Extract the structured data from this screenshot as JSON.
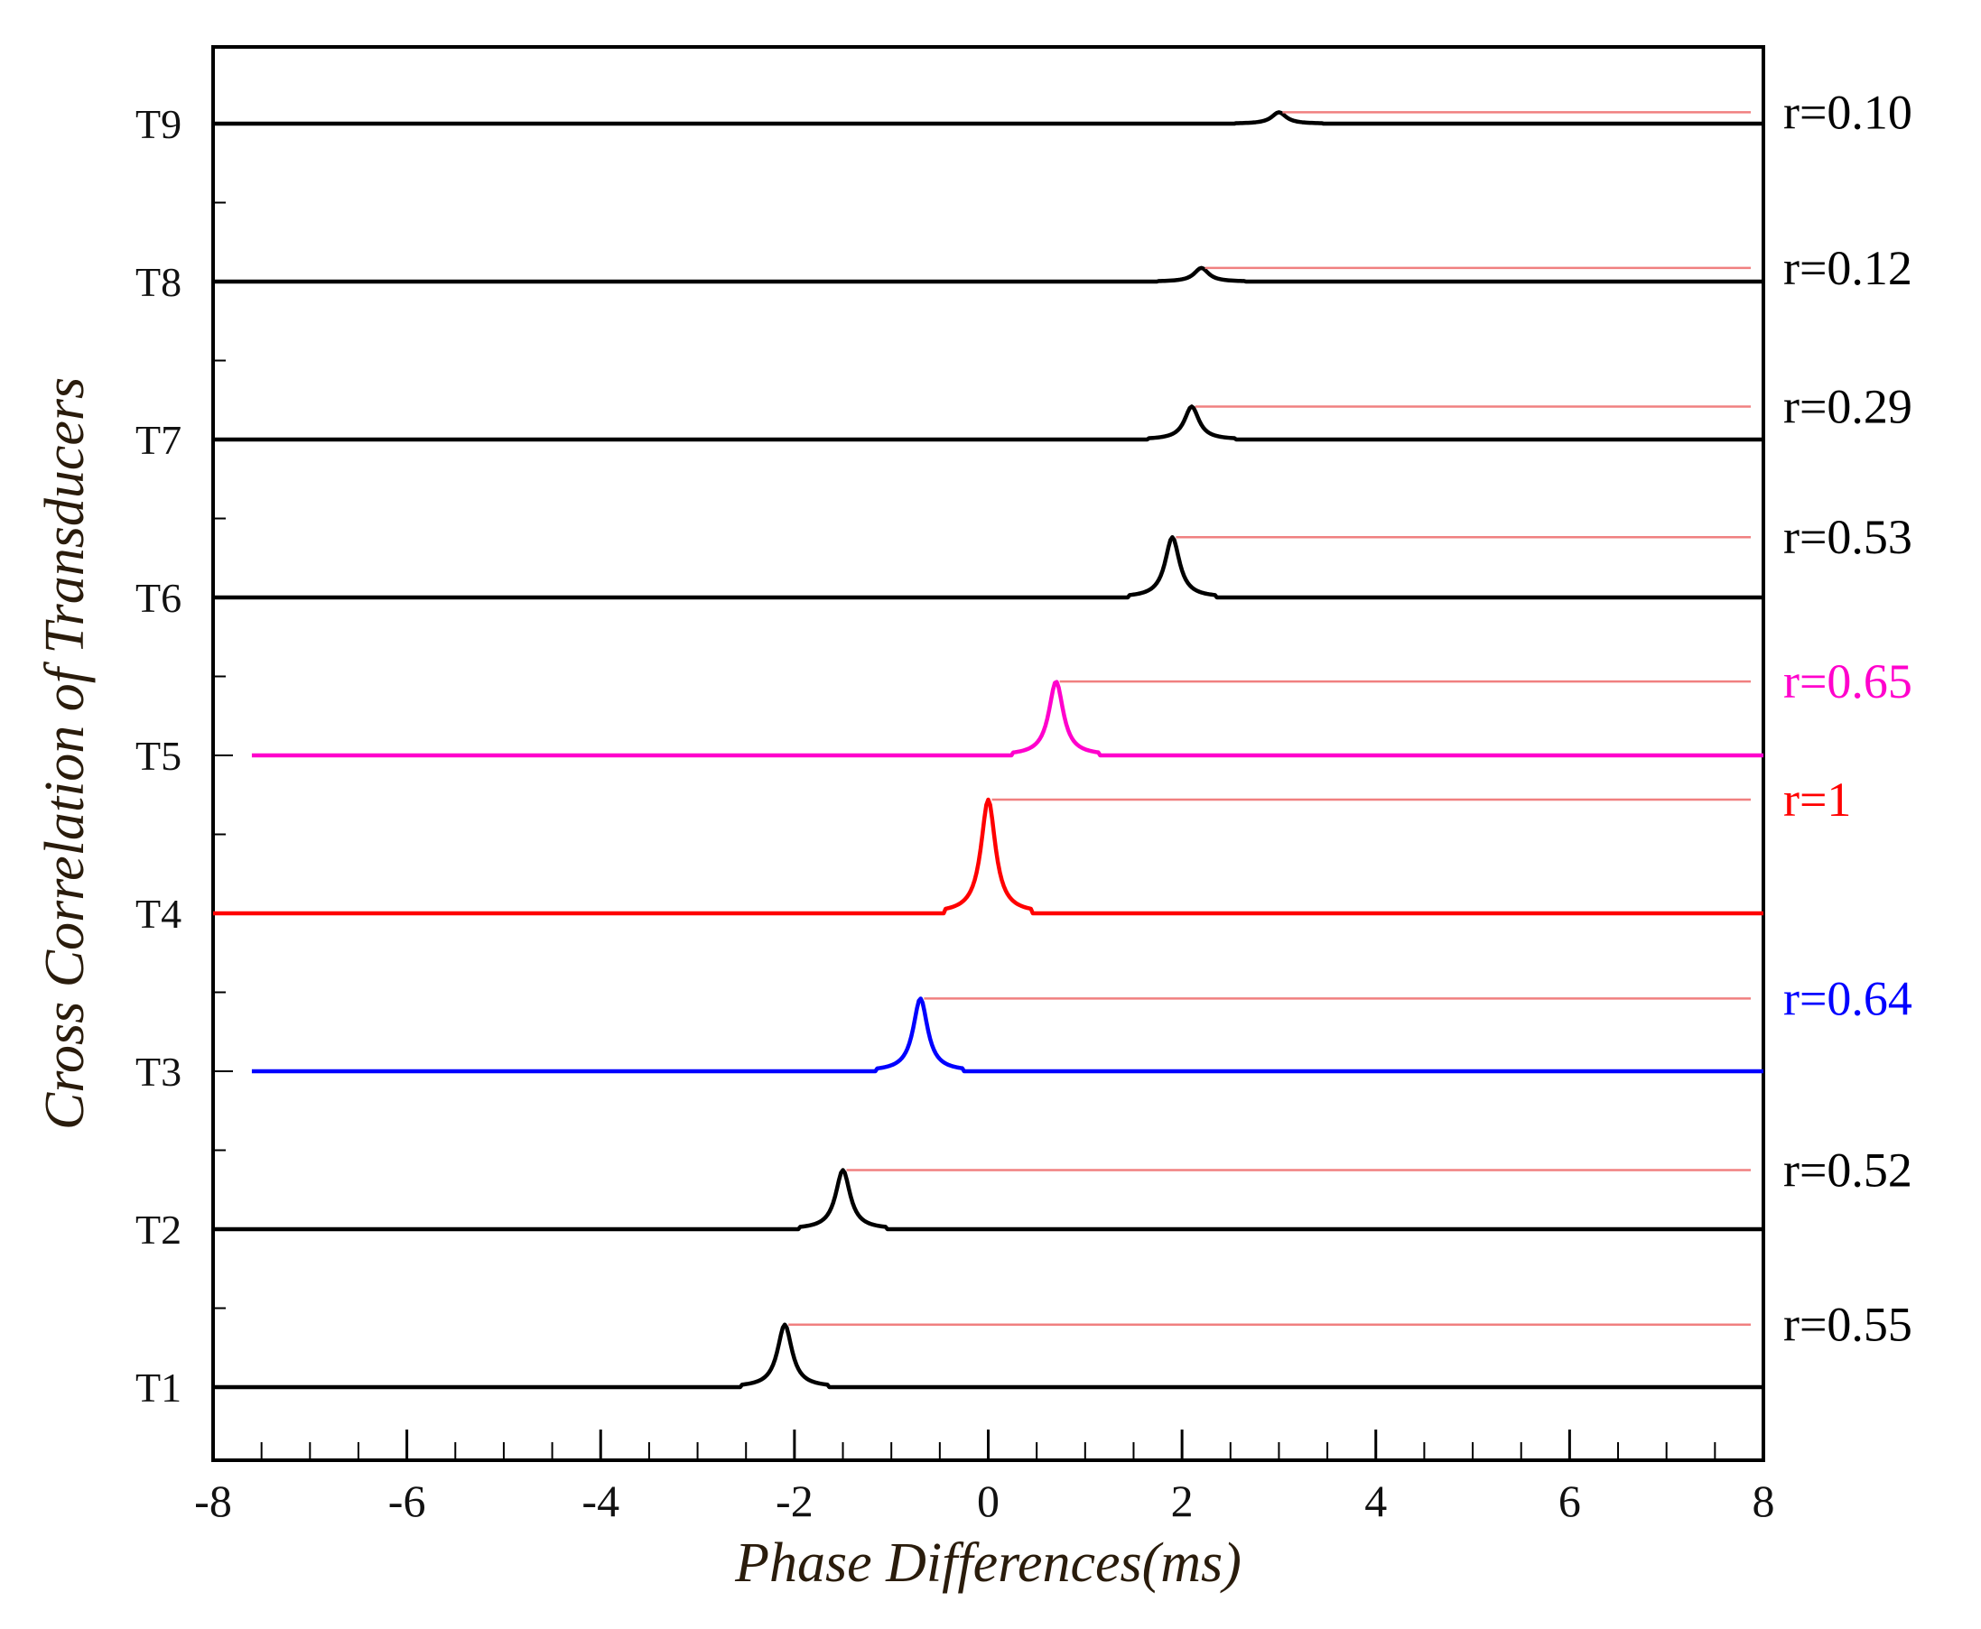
{
  "chart_data": {
    "type": "line",
    "title": "",
    "xlabel": "Phase Differences(ms)",
    "ylabel": "Cross Correlation of Transducers",
    "xlim": [
      -8,
      8
    ],
    "x_ticks": [
      -8,
      -6,
      -4,
      -2,
      0,
      2,
      4,
      6,
      8
    ],
    "x_tick_labels": [
      "-8",
      "-6",
      "-4",
      "-2",
      "0",
      "2",
      "4",
      "6",
      "8"
    ],
    "grid": false,
    "series": [
      {
        "name": "T1",
        "peak_x": -2.1,
        "r": 0.55,
        "r_label": "r=0.55",
        "color": "#000000",
        "line_start_x": -8
      },
      {
        "name": "T2",
        "peak_x": -1.5,
        "r": 0.52,
        "r_label": "r=0.52",
        "color": "#000000",
        "line_start_x": -8
      },
      {
        "name": "T3",
        "peak_x": -0.7,
        "r": 0.64,
        "r_label": "r=0.64",
        "color": "#0000ff",
        "line_start_x": -7.6
      },
      {
        "name": "T4",
        "peak_x": 0.0,
        "r": 1.0,
        "r_label": "r=1",
        "color": "#ff0000",
        "line_start_x": -8
      },
      {
        "name": "T5",
        "peak_x": 0.7,
        "r": 0.65,
        "r_label": "r=0.65",
        "color": "#ff00cc",
        "line_start_x": -7.6
      },
      {
        "name": "T6",
        "peak_x": 1.9,
        "r": 0.53,
        "r_label": "r=0.53",
        "color": "#000000",
        "line_start_x": -8
      },
      {
        "name": "T7",
        "peak_x": 2.1,
        "r": 0.29,
        "r_label": "r=0.29",
        "color": "#000000",
        "line_start_x": -8
      },
      {
        "name": "T8",
        "peak_x": 2.2,
        "r": 0.12,
        "r_label": "r=0.12",
        "color": "#000000",
        "line_start_x": -8
      },
      {
        "name": "T9",
        "peak_x": 3.0,
        "r": 0.1,
        "r_label": "r=0.10",
        "color": "#000000",
        "line_start_x": -8
      }
    ],
    "reference_line_color": "#f08080"
  }
}
